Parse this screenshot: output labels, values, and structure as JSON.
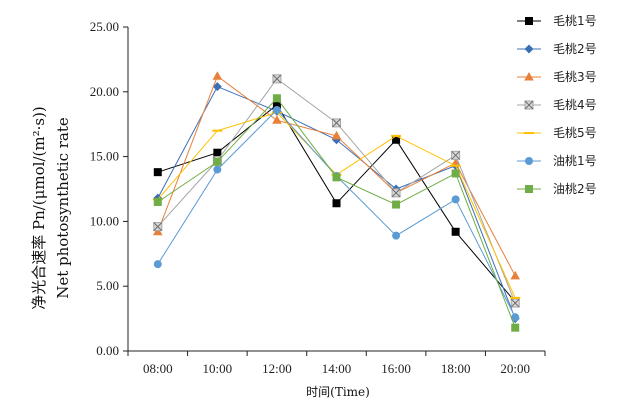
{
  "chart_data": {
    "type": "line",
    "title": "",
    "xlabel": "时间(Time)",
    "ylabel_cn": "净光合速率 Pn/(μmol/(m²·s))",
    "ylabel_en": "Net photosynthetic rate",
    "categories": [
      "08:00",
      "10:00",
      "12:00",
      "14:00",
      "16:00",
      "18:00",
      "20:00"
    ],
    "ylim": [
      0,
      25
    ],
    "yticks": [
      "0.00",
      "5.00",
      "10.00",
      "15.00",
      "20.00",
      "25.00"
    ],
    "legend_position": "right",
    "grid": false,
    "series": [
      {
        "name": "毛桃1号",
        "marker": "square",
        "color": "#000000",
        "values": [
          13.8,
          15.3,
          19.0,
          11.4,
          16.3,
          9.2,
          3.8
        ]
      },
      {
        "name": "毛桃2号",
        "marker": "diamond",
        "color": "#3d6fb5",
        "values": [
          11.8,
          20.4,
          18.5,
          16.3,
          12.5,
          14.3,
          2.5
        ]
      },
      {
        "name": "毛桃3号",
        "marker": "triangle",
        "color": "#e8803a",
        "values": [
          9.2,
          21.2,
          17.8,
          16.6,
          12.2,
          14.5,
          5.8
        ]
      },
      {
        "name": "毛桃4号",
        "marker": "x-square",
        "color": "#a6a6a6",
        "values": [
          9.6,
          14.7,
          21.0,
          17.6,
          12.2,
          15.1,
          3.7
        ]
      },
      {
        "name": "毛桃5号",
        "marker": "dash",
        "color": "#ffc000",
        "values": [
          11.7,
          17.0,
          18.4,
          13.6,
          16.6,
          14.3,
          4.1
        ]
      },
      {
        "name": "油桃1号",
        "marker": "circle",
        "color": "#5b9bd5",
        "values": [
          6.7,
          14.0,
          18.6,
          13.5,
          8.9,
          11.7,
          2.6
        ]
      },
      {
        "name": "油桃2号",
        "marker": "square",
        "color": "#70ad47",
        "values": [
          11.5,
          14.6,
          19.5,
          13.4,
          11.3,
          13.7,
          1.8
        ]
      }
    ]
  }
}
